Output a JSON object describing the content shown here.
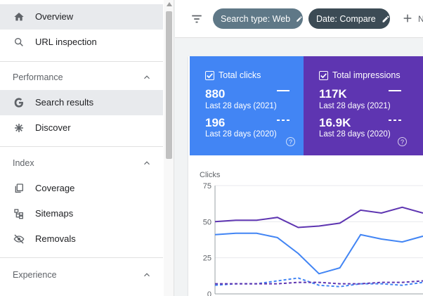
{
  "sidebar": {
    "items_top": [
      {
        "label": "Overview",
        "icon": "home-icon",
        "active": true
      },
      {
        "label": "URL inspection",
        "icon": "search-icon"
      }
    ],
    "sections": [
      {
        "title": "Performance",
        "items": [
          {
            "label": "Search results",
            "icon": "google-g-icon",
            "active": true
          },
          {
            "label": "Discover",
            "icon": "asterisk-icon"
          }
        ]
      },
      {
        "title": "Index",
        "items": [
          {
            "label": "Coverage",
            "icon": "coverage-icon"
          },
          {
            "label": "Sitemaps",
            "icon": "sitemap-icon"
          },
          {
            "label": "Removals",
            "icon": "eye-off-icon"
          }
        ]
      },
      {
        "title": "Experience",
        "items": []
      }
    ]
  },
  "topbar": {
    "chips": [
      {
        "label": "Search type: Web",
        "icon": "pencil-icon"
      },
      {
        "label": "Date: Compare",
        "icon": "pencil-icon"
      }
    ],
    "add_label": "N"
  },
  "metrics": {
    "clicks": {
      "title": "Total clicks",
      "value_current": "880",
      "label_current": "Last 28 days (2021)",
      "value_previous": "196",
      "label_previous": "Last 28 days (2020)",
      "color": "#4285f4"
    },
    "impressions": {
      "title": "Total impressions",
      "value_current": "117K",
      "label_current": "Last 28 days (2021)",
      "value_previous": "16.9K",
      "label_previous": "Last 28 days (2020)",
      "color": "#5e35b1"
    }
  },
  "chart_data": {
    "type": "line",
    "title": "",
    "ylabel": "Clicks",
    "y_ticks": [
      "75",
      "50",
      "25",
      "0"
    ],
    "ylim": [
      0,
      75
    ],
    "x": [
      0,
      1,
      2,
      3,
      4,
      5,
      6,
      7,
      8,
      9,
      10
    ],
    "grid": true,
    "series": [
      {
        "color": "#5e35b1",
        "style": "solid",
        "values": [
          50,
          51,
          51,
          53,
          46,
          47,
          49,
          58,
          56,
          60,
          56
        ]
      },
      {
        "color": "#4285f4",
        "style": "solid",
        "values": [
          41,
          42,
          42,
          39,
          28,
          14,
          18,
          41,
          38,
          36,
          40
        ]
      },
      {
        "color": "#4285f4",
        "style": "dashed",
        "values": [
          6,
          7,
          7,
          9,
          11,
          6,
          5,
          7,
          7,
          6,
          8
        ]
      },
      {
        "color": "#5e35b1",
        "style": "dashed",
        "values": [
          7,
          7,
          7,
          7,
          8,
          8,
          7,
          7,
          8,
          8,
          9
        ]
      }
    ]
  }
}
